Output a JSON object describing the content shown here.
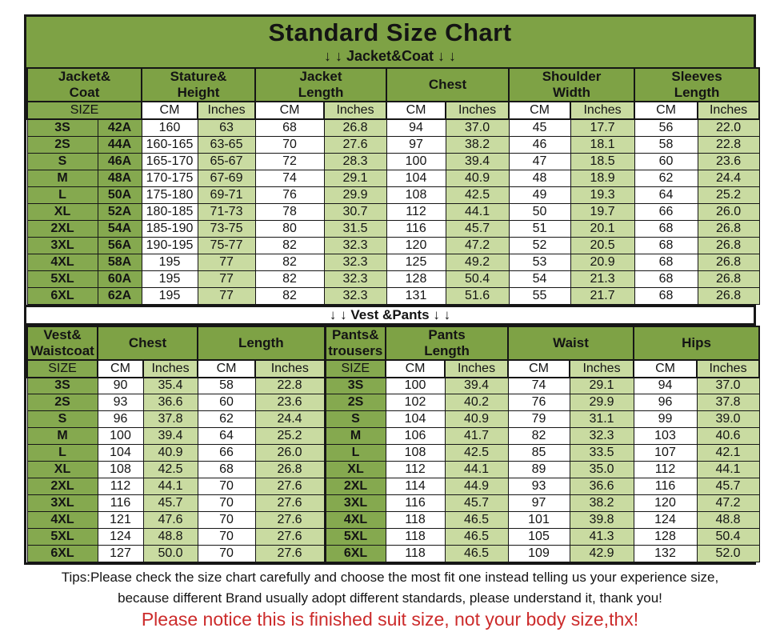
{
  "title": "Standard Size Chart",
  "colors": {
    "header_green": "#7EA245",
    "size_cell_green": "#85A94F",
    "inches_cell_green": "#C9DBA1",
    "cm_cell_white": "#ffffff",
    "border_black": "#161616",
    "notice_red": "#CC2B2B"
  },
  "jacket_table": {
    "subtitle": "↓ ↓  Jacket&Coat  ↓ ↓",
    "group_headers": [
      "Jacket&\nCoat",
      "Stature&\nHeight",
      "Jacket\nLength",
      "Chest",
      "Shoulder\nWidth",
      "Sleeves\nLength"
    ],
    "size_row": [
      "SIZE",
      "CM",
      "Inches",
      "CM",
      "Inches",
      "CM",
      "Inches",
      "CM",
      "Inches",
      "CM",
      "Inches"
    ],
    "rows": [
      [
        "3S",
        "42A",
        "160",
        "63",
        "68",
        "26.8",
        "94",
        "37.0",
        "45",
        "17.7",
        "56",
        "22.0"
      ],
      [
        "2S",
        "44A",
        "160-165",
        "63-65",
        "70",
        "27.6",
        "97",
        "38.2",
        "46",
        "18.1",
        "58",
        "22.8"
      ],
      [
        "S",
        "46A",
        "165-170",
        "65-67",
        "72",
        "28.3",
        "100",
        "39.4",
        "47",
        "18.5",
        "60",
        "23.6"
      ],
      [
        "M",
        "48A",
        "170-175",
        "67-69",
        "74",
        "29.1",
        "104",
        "40.9",
        "48",
        "18.9",
        "62",
        "24.4"
      ],
      [
        "L",
        "50A",
        "175-180",
        "69-71",
        "76",
        "29.9",
        "108",
        "42.5",
        "49",
        "19.3",
        "64",
        "25.2"
      ],
      [
        "XL",
        "52A",
        "180-185",
        "71-73",
        "78",
        "30.7",
        "112",
        "44.1",
        "50",
        "19.7",
        "66",
        "26.0"
      ],
      [
        "2XL",
        "54A",
        "185-190",
        "73-75",
        "80",
        "31.5",
        "116",
        "45.7",
        "51",
        "20.1",
        "68",
        "26.8"
      ],
      [
        "3XL",
        "56A",
        "190-195",
        "75-77",
        "82",
        "32.3",
        "120",
        "47.2",
        "52",
        "20.5",
        "68",
        "26.8"
      ],
      [
        "4XL",
        "58A",
        "195",
        "77",
        "82",
        "32.3",
        "125",
        "49.2",
        "53",
        "20.9",
        "68",
        "26.8"
      ],
      [
        "5XL",
        "60A",
        "195",
        "77",
        "82",
        "32.3",
        "128",
        "50.4",
        "54",
        "21.3",
        "68",
        "26.8"
      ],
      [
        "6XL",
        "62A",
        "195",
        "77",
        "82",
        "32.3",
        "131",
        "51.6",
        "55",
        "21.7",
        "68",
        "26.8"
      ]
    ]
  },
  "vest_table": {
    "subtitle": "↓ ↓  Vest &Pants ↓ ↓",
    "group_headers": [
      "Vest&\nWaistcoat",
      "Chest",
      "Length",
      "Pants&\ntrousers",
      "Pants\nLength",
      "Waist",
      "Hips"
    ],
    "size_row": [
      "SIZE",
      "CM",
      "Inches",
      "CM",
      "Inches",
      "SIZE",
      "CM",
      "Inches",
      "CM",
      "Inches",
      "CM",
      "Inches"
    ],
    "rows": [
      [
        "3S",
        "90",
        "35.4",
        "58",
        "22.8",
        "3S",
        "100",
        "39.4",
        "74",
        "29.1",
        "94",
        "37.0"
      ],
      [
        "2S",
        "93",
        "36.6",
        "60",
        "23.6",
        "2S",
        "102",
        "40.2",
        "76",
        "29.9",
        "96",
        "37.8"
      ],
      [
        "S",
        "96",
        "37.8",
        "62",
        "24.4",
        "S",
        "104",
        "40.9",
        "79",
        "31.1",
        "99",
        "39.0"
      ],
      [
        "M",
        "100",
        "39.4",
        "64",
        "25.2",
        "M",
        "106",
        "41.7",
        "82",
        "32.3",
        "103",
        "40.6"
      ],
      [
        "L",
        "104",
        "40.9",
        "66",
        "26.0",
        "L",
        "108",
        "42.5",
        "85",
        "33.5",
        "107",
        "42.1"
      ],
      [
        "XL",
        "108",
        "42.5",
        "68",
        "26.8",
        "XL",
        "112",
        "44.1",
        "89",
        "35.0",
        "112",
        "44.1"
      ],
      [
        "2XL",
        "112",
        "44.1",
        "70",
        "27.6",
        "2XL",
        "114",
        "44.9",
        "93",
        "36.6",
        "116",
        "45.7"
      ],
      [
        "3XL",
        "116",
        "45.7",
        "70",
        "27.6",
        "3XL",
        "116",
        "45.7",
        "97",
        "38.2",
        "120",
        "47.2"
      ],
      [
        "4XL",
        "121",
        "47.6",
        "70",
        "27.6",
        "4XL",
        "118",
        "46.5",
        "101",
        "39.8",
        "124",
        "48.8"
      ],
      [
        "5XL",
        "124",
        "48.8",
        "70",
        "27.6",
        "5XL",
        "118",
        "46.5",
        "105",
        "41.3",
        "128",
        "50.4"
      ],
      [
        "6XL",
        "127",
        "50.0",
        "70",
        "27.6",
        "6XL",
        "118",
        "46.5",
        "109",
        "42.9",
        "132",
        "52.0"
      ]
    ]
  },
  "footer": {
    "tips_line1": "Tips:Please check the size chart carefully and choose the most fit one instead telling us your experience size,",
    "tips_line2": "because different Brand usually adopt different standards, please understand it, thank you!",
    "notice": "Please notice this is finished suit size, not your body size,thx!"
  }
}
